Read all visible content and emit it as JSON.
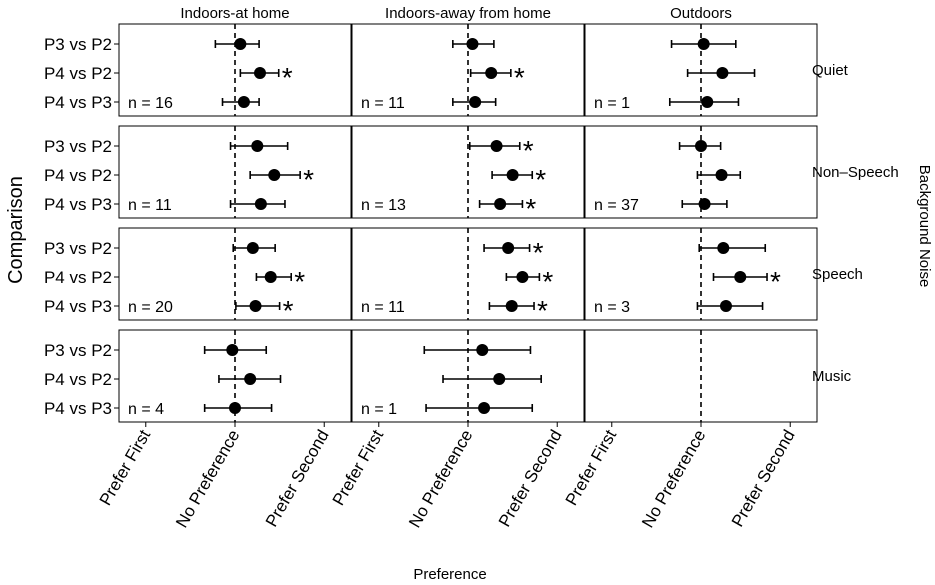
{
  "chart_data": {
    "type": "scatter",
    "subtype": "dot-and-whisker faceted grid",
    "xlabel": "Preference",
    "ylabel": "Comparison",
    "right_strip_title": "Background Noise",
    "x_ticks": [
      {
        "value": -1,
        "label": "Prefer First"
      },
      {
        "value": 0,
        "label": "No Preference"
      },
      {
        "value": 1,
        "label": "Prefer Second"
      }
    ],
    "xlim": [
      -1.3,
      1.3
    ],
    "columns": [
      "Indoors-at home",
      "Indoors-away from home",
      "Outdoors"
    ],
    "rows": [
      "Quiet",
      "Non–Speech",
      "Speech",
      "Music"
    ],
    "comparisons": [
      "P3 vs P2",
      "P4 vs P2",
      "P4 vs P3"
    ],
    "significance_marker": "*",
    "panels": [
      {
        "row": 0,
        "col": 0,
        "n": "n = 16",
        "points": [
          {
            "comparison": "P3 vs P2",
            "mean": 0.06,
            "lo": -0.22,
            "hi": 0.27,
            "sig": false
          },
          {
            "comparison": "P4 vs P2",
            "mean": 0.28,
            "lo": 0.06,
            "hi": 0.49,
            "sig": true
          },
          {
            "comparison": "P4 vs P3",
            "mean": 0.1,
            "lo": -0.14,
            "hi": 0.27,
            "sig": false
          }
        ]
      },
      {
        "row": 0,
        "col": 1,
        "n": "n = 11",
        "points": [
          {
            "comparison": "P3 vs P2",
            "mean": 0.05,
            "lo": -0.17,
            "hi": 0.29,
            "sig": false
          },
          {
            "comparison": "P4 vs P2",
            "mean": 0.26,
            "lo": 0.03,
            "hi": 0.48,
            "sig": true
          },
          {
            "comparison": "P4 vs P3",
            "mean": 0.08,
            "lo": -0.17,
            "hi": 0.31,
            "sig": false
          }
        ]
      },
      {
        "row": 0,
        "col": 2,
        "n": "n = 1",
        "points": [
          {
            "comparison": "P3 vs P2",
            "mean": 0.03,
            "lo": -0.33,
            "hi": 0.39,
            "sig": false
          },
          {
            "comparison": "P4 vs P2",
            "mean": 0.24,
            "lo": -0.15,
            "hi": 0.6,
            "sig": false
          },
          {
            "comparison": "P4 vs P3",
            "mean": 0.07,
            "lo": -0.35,
            "hi": 0.42,
            "sig": false
          }
        ]
      },
      {
        "row": 1,
        "col": 0,
        "n": "n = 11",
        "points": [
          {
            "comparison": "P3 vs P2",
            "mean": 0.25,
            "lo": -0.05,
            "hi": 0.59,
            "sig": false
          },
          {
            "comparison": "P4 vs P2",
            "mean": 0.44,
            "lo": 0.17,
            "hi": 0.73,
            "sig": true
          },
          {
            "comparison": "P4 vs P3",
            "mean": 0.29,
            "lo": -0.05,
            "hi": 0.56,
            "sig": false
          }
        ]
      },
      {
        "row": 1,
        "col": 1,
        "n": "n = 13",
        "points": [
          {
            "comparison": "P3 vs P2",
            "mean": 0.32,
            "lo": 0.02,
            "hi": 0.58,
            "sig": true
          },
          {
            "comparison": "P4 vs P2",
            "mean": 0.5,
            "lo": 0.27,
            "hi": 0.72,
            "sig": true
          },
          {
            "comparison": "P4 vs P3",
            "mean": 0.36,
            "lo": 0.13,
            "hi": 0.61,
            "sig": true
          }
        ]
      },
      {
        "row": 1,
        "col": 2,
        "n": "n = 37",
        "points": [
          {
            "comparison": "P3 vs P2",
            "mean": 0.0,
            "lo": -0.24,
            "hi": 0.22,
            "sig": false
          },
          {
            "comparison": "P4 vs P2",
            "mean": 0.23,
            "lo": -0.04,
            "hi": 0.44,
            "sig": false
          },
          {
            "comparison": "P4 vs P3",
            "mean": 0.04,
            "lo": -0.21,
            "hi": 0.29,
            "sig": false
          }
        ]
      },
      {
        "row": 2,
        "col": 0,
        "n": "n = 20",
        "points": [
          {
            "comparison": "P3 vs P2",
            "mean": 0.2,
            "lo": -0.02,
            "hi": 0.45,
            "sig": false
          },
          {
            "comparison": "P4 vs P2",
            "mean": 0.4,
            "lo": 0.24,
            "hi": 0.63,
            "sig": true
          },
          {
            "comparison": "P4 vs P3",
            "mean": 0.23,
            "lo": 0.01,
            "hi": 0.5,
            "sig": true
          }
        ]
      },
      {
        "row": 2,
        "col": 1,
        "n": "n = 11",
        "points": [
          {
            "comparison": "P3 vs P2",
            "mean": 0.45,
            "lo": 0.18,
            "hi": 0.69,
            "sig": true
          },
          {
            "comparison": "P4 vs P2",
            "mean": 0.61,
            "lo": 0.43,
            "hi": 0.8,
            "sig": true
          },
          {
            "comparison": "P4 vs P3",
            "mean": 0.49,
            "lo": 0.24,
            "hi": 0.74,
            "sig": true
          }
        ]
      },
      {
        "row": 2,
        "col": 2,
        "n": "n = 3",
        "points": [
          {
            "comparison": "P3 vs P2",
            "mean": 0.25,
            "lo": -0.02,
            "hi": 0.72,
            "sig": false
          },
          {
            "comparison": "P4 vs P2",
            "mean": 0.44,
            "lo": 0.14,
            "hi": 0.74,
            "sig": true
          },
          {
            "comparison": "P4 vs P3",
            "mean": 0.28,
            "lo": -0.04,
            "hi": 0.69,
            "sig": false
          }
        ]
      },
      {
        "row": 3,
        "col": 0,
        "n": "n = 4",
        "points": [
          {
            "comparison": "P3 vs P2",
            "mean": -0.03,
            "lo": -0.34,
            "hi": 0.35,
            "sig": false
          },
          {
            "comparison": "P4 vs P2",
            "mean": 0.17,
            "lo": -0.18,
            "hi": 0.51,
            "sig": false
          },
          {
            "comparison": "P4 vs P3",
            "mean": 0.0,
            "lo": -0.34,
            "hi": 0.41,
            "sig": false
          }
        ]
      },
      {
        "row": 3,
        "col": 1,
        "n": "n = 1",
        "points": [
          {
            "comparison": "P3 vs P2",
            "mean": 0.16,
            "lo": -0.49,
            "hi": 0.7,
            "sig": false
          },
          {
            "comparison": "P4 vs P2",
            "mean": 0.35,
            "lo": -0.28,
            "hi": 0.82,
            "sig": false
          },
          {
            "comparison": "P4 vs P3",
            "mean": 0.18,
            "lo": -0.47,
            "hi": 0.72,
            "sig": false
          }
        ]
      }
    ]
  }
}
